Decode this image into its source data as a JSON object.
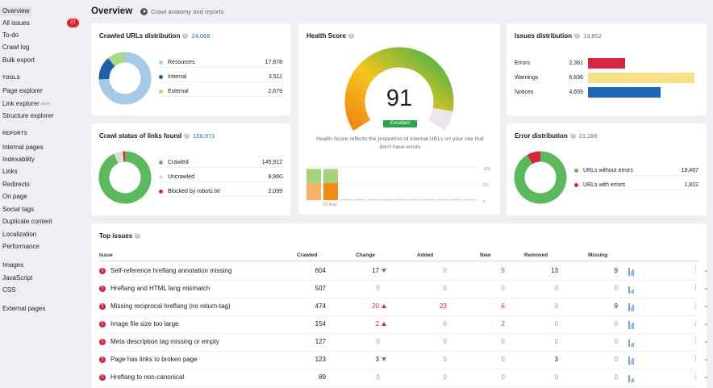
{
  "sidebar": {
    "items": [
      "Overview",
      "All issues",
      "To-do",
      "Crawl log",
      "Bulk export"
    ],
    "all_issues_badge": "21",
    "tools_title": "TOOLS",
    "tools": [
      "Page explorer",
      "Link explorer",
      "Structure explorer"
    ],
    "beta": "BETA",
    "reports_title": "REPORTS",
    "reports": [
      "Internal pages",
      "Indexability",
      "Links",
      "Redirects",
      "On page",
      "Social tags",
      "Duplicate content",
      "Localization",
      "Performance"
    ],
    "resources": [
      "Images",
      "JavaScript",
      "CSS"
    ],
    "external": "External pages"
  },
  "header": {
    "title": "Overview",
    "subtitle": "Crawl anatomy and reports"
  },
  "crawled": {
    "title": "Crawled URLs distribution",
    "count": "24,068",
    "items": [
      {
        "label": "Resources",
        "value": "17,878",
        "num": 17878,
        "color": "#a7c9e8"
      },
      {
        "label": "Internal",
        "value": "3,511",
        "num": 3511,
        "color": "#1f5fa8"
      },
      {
        "label": "External",
        "value": "2,679",
        "num": 2679,
        "color": "#a8d88c"
      }
    ]
  },
  "health": {
    "title": "Health Score",
    "score": "91",
    "rating": "Excellent",
    "description": "Health Score reflects the proportion of internal URLs on your site that don't have errors",
    "y_ticks": [
      "100",
      "50",
      "0"
    ],
    "date": "19 Aug"
  },
  "issues_dist": {
    "title": "Issues distribution",
    "count": "13,852",
    "items": [
      {
        "label": "Errors",
        "value": "2,361",
        "num": 2361,
        "color": "#d7263d"
      },
      {
        "label": "Warnings",
        "value": "6,836",
        "num": 6836,
        "color": "#f7df85"
      },
      {
        "label": "Notices",
        "value": "4,655",
        "num": 4655,
        "color": "#1f66b8"
      }
    ]
  },
  "crawl_status": {
    "title": "Crawl status of links found",
    "count": "156,971",
    "items": [
      {
        "label": "Crawled",
        "value": "145,912",
        "num": 145912,
        "color": "#5cb85c"
      },
      {
        "label": "Uncrawled",
        "value": "8,960",
        "num": 8960,
        "color": "#dcdcdc"
      },
      {
        "label": "Blocked by robots.txt",
        "value": "2,099",
        "num": 2099,
        "color": "#d7263d"
      }
    ]
  },
  "error_dist": {
    "title": "Error distribution",
    "count": "21,289",
    "items": [
      {
        "label": "URLs without errors",
        "value": "19,467",
        "num": 19467,
        "color": "#5cb85c"
      },
      {
        "label": "URLs with errors",
        "value": "1,822",
        "num": 1822,
        "color": "#d7263d"
      }
    ]
  },
  "top_issues": {
    "title": "Top issues",
    "headers": [
      "Issue",
      "Crawled",
      "Change",
      "Added",
      "New",
      "Removed",
      "Missing"
    ],
    "rows": [
      {
        "issue": "Self-reference hreflang annotation missing",
        "crawled": "604",
        "change": "17",
        "dir": "down",
        "added": "0",
        "new": "5",
        "removed": "13",
        "missing": "9"
      },
      {
        "issue": "Hreflang and HTML lang mismatch",
        "crawled": "507",
        "change": "0",
        "dir": "",
        "added": "0",
        "new": "0",
        "removed": "0",
        "missing": "0"
      },
      {
        "issue": "Missing reciprocal hreflang (no return-tag)",
        "crawled": "474",
        "change": "20",
        "dir": "up",
        "added": "23",
        "new": "6",
        "removed": "0",
        "missing": "9"
      },
      {
        "issue": "Image file size too large",
        "crawled": "154",
        "change": "2",
        "dir": "up",
        "added": "0",
        "new": "2",
        "removed": "0",
        "missing": "0"
      },
      {
        "issue": "Meta description tag missing or empty",
        "crawled": "127",
        "change": "0",
        "dir": "",
        "added": "0",
        "new": "0",
        "removed": "0",
        "missing": "0"
      },
      {
        "issue": "Page has links to broken page",
        "crawled": "123",
        "change": "3",
        "dir": "down",
        "added": "0",
        "new": "0",
        "removed": "3",
        "missing": "0"
      },
      {
        "issue": "Hreflang to non-canonical",
        "crawled": "89",
        "change": "0",
        "dir": "",
        "added": "0",
        "new": "0",
        "removed": "0",
        "missing": "0"
      }
    ]
  }
}
